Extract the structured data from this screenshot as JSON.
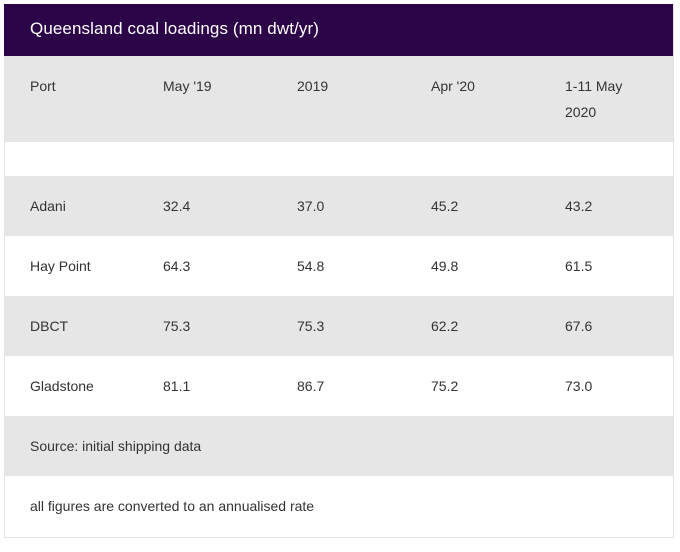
{
  "table": {
    "title": "Queensland coal loadings (mn dwt/yr)",
    "columns": [
      "Port",
      "May '19",
      "2019",
      "Apr '20",
      "1-11 May 2020"
    ],
    "rows": [
      [
        "Adani",
        "32.4",
        "37.0",
        "45.2",
        "43.2"
      ],
      [
        "Hay Point",
        "64.3",
        "54.8",
        "49.8",
        "61.5"
      ],
      [
        "DBCT",
        "75.3",
        "75.3",
        "62.2",
        "67.6"
      ],
      [
        "Gladstone",
        "81.1",
        "86.7",
        "75.2",
        "73.0"
      ]
    ],
    "source": "Source: initial shipping data",
    "footnote": "all figures are converted to an annualised rate"
  },
  "colors": {
    "header_background": "#2c0548",
    "header_text": "#ffffff",
    "shaded_row": "#e6e6e6",
    "text": "#333333"
  }
}
